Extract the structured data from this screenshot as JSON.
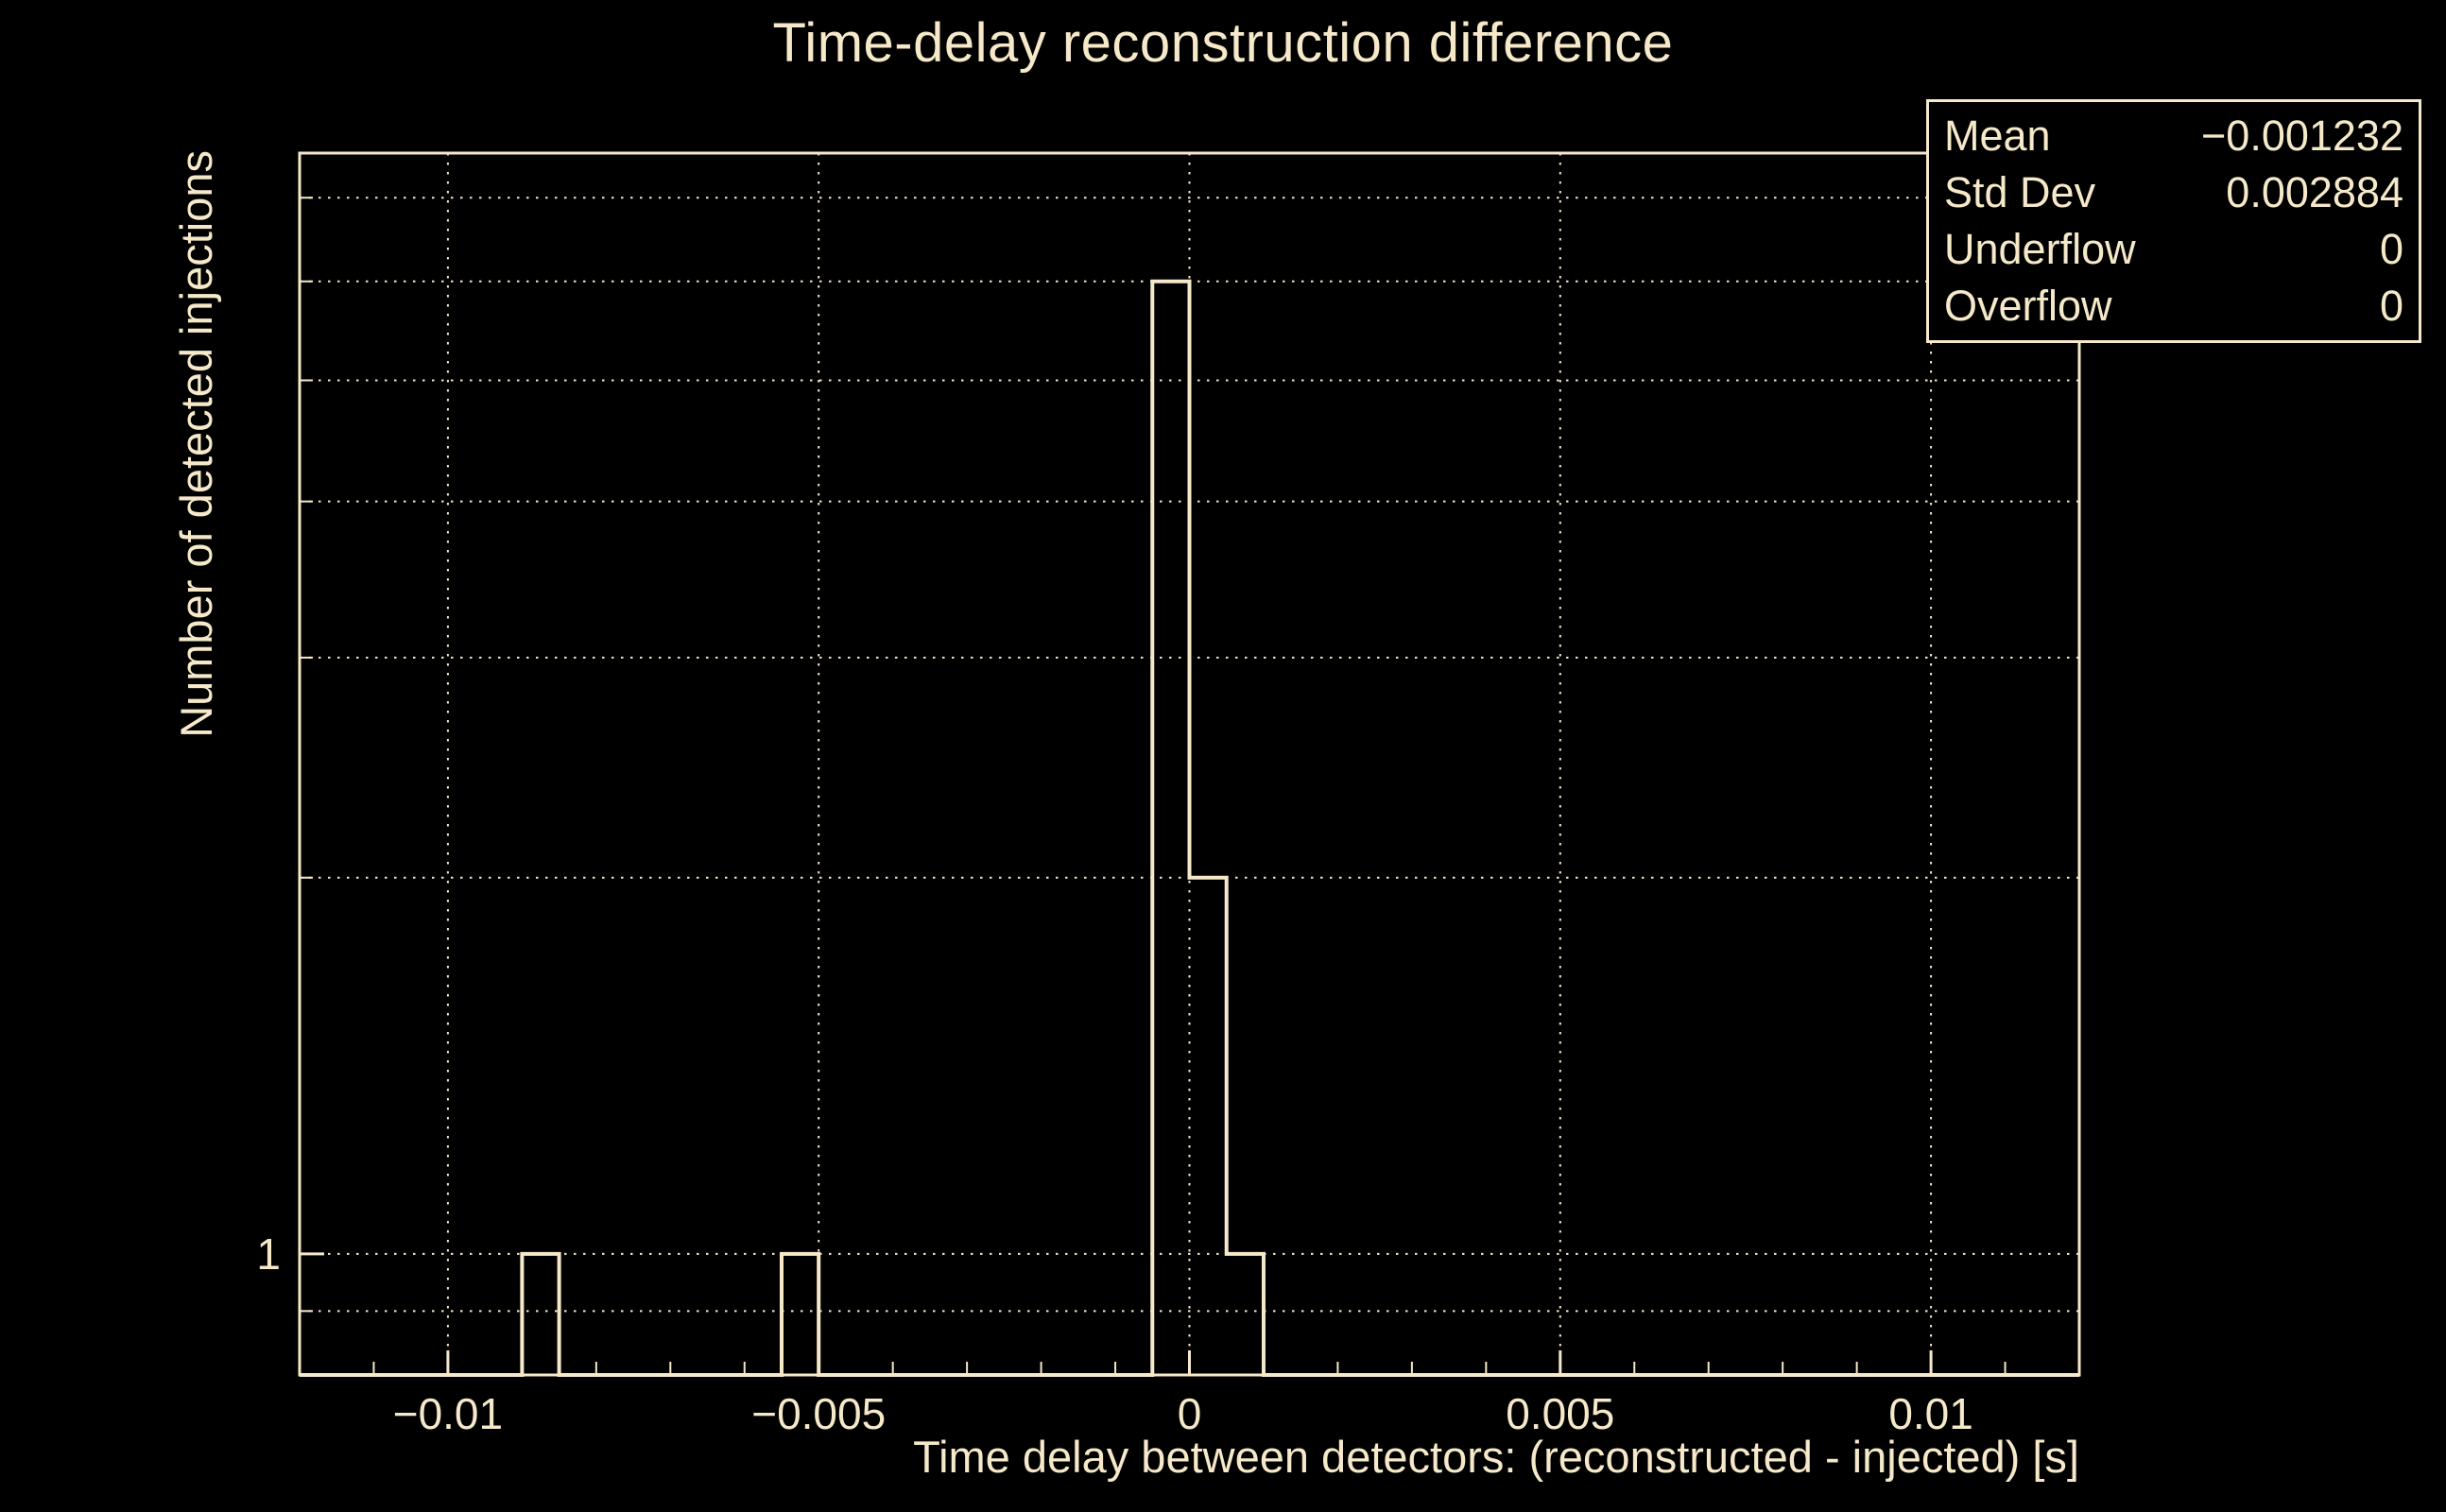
{
  "page": {
    "background": "#000000",
    "accent": "#f6e9c9"
  },
  "chart_data": {
    "type": "bar",
    "subtype": "histogram-step",
    "title": "Time-delay reconstruction difference",
    "xlabel": "Time delay between detectors: (reconstructed - injected) [s]",
    "ylabel": "Number of detected injections",
    "grid": true,
    "legend_position": "none",
    "x_axis": {
      "range": [
        -0.012,
        0.012
      ],
      "major_ticks": [
        -0.01,
        -0.005,
        0,
        0.005,
        0.01
      ],
      "tick_labels": [
        "−0.01",
        "−0.005",
        "0",
        "0.005",
        "0.01"
      ],
      "minor_tick_step": 0.001
    },
    "y_axis": {
      "scale": "log",
      "range": [
        0.8,
        7.6
      ],
      "gridline_values": [
        0.9,
        1,
        2,
        3,
        4,
        5,
        6,
        7
      ],
      "labeled_ticks": [
        {
          "value": 1,
          "label": "1"
        }
      ]
    },
    "bins": [
      {
        "x0": -0.009,
        "x1": -0.0085,
        "count": 1
      },
      {
        "x0": -0.0055,
        "x1": -0.005,
        "count": 1
      },
      {
        "x0": -0.0005,
        "x1": 0,
        "count": 6
      },
      {
        "x0": 0,
        "x1": 0.0005,
        "count": 2
      },
      {
        "x0": 0.0005,
        "x1": 0.001,
        "count": 1
      }
    ],
    "stats_box": {
      "rows": [
        {
          "label": "Mean",
          "value": "−0.001232"
        },
        {
          "label": "Std Dev",
          "value": "0.002884"
        },
        {
          "label": "Underflow",
          "value": "0"
        },
        {
          "label": "Overflow",
          "value": "0"
        }
      ]
    }
  }
}
